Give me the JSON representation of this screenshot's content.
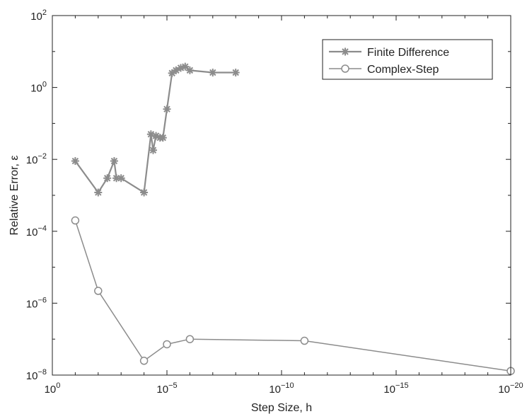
{
  "chart_data": {
    "type": "line",
    "xlabel": "Step Size, h",
    "ylabel": "Relative Error, ε",
    "x_scale": "log",
    "y_scale": "log",
    "x_axis_direction": "decreasing",
    "xlim": [
      1,
      1e-20
    ],
    "ylim": [
      1e-08,
      100
    ],
    "x_ticks": [
      {
        "base": "10",
        "exp": "0"
      },
      {
        "base": "10",
        "exp": "−5"
      },
      {
        "base": "10",
        "exp": "−10"
      },
      {
        "base": "10",
        "exp": "−15"
      },
      {
        "base": "10",
        "exp": "−20"
      }
    ],
    "y_ticks": [
      {
        "base": "10",
        "exp": "−8"
      },
      {
        "base": "10",
        "exp": "−6"
      },
      {
        "base": "10",
        "exp": "−4"
      },
      {
        "base": "10",
        "exp": "−2"
      },
      {
        "base": "10",
        "exp": "0"
      },
      {
        "base": "10",
        "exp": "2"
      }
    ],
    "grid": false,
    "legend_position": "top-right",
    "series": [
      {
        "name": "Finite Difference",
        "marker": "asterisk",
        "color": "#8c8c8c",
        "points": [
          [
            0.1,
            0.009
          ],
          [
            0.01,
            0.0012
          ],
          [
            0.004,
            0.003
          ],
          [
            0.002,
            0.009
          ],
          [
            0.0016,
            0.003
          ],
          [
            0.001,
            0.003
          ],
          [
            0.0001,
            0.0012
          ],
          [
            5e-05,
            0.05
          ],
          [
            4e-05,
            0.018
          ],
          [
            3e-05,
            0.045
          ],
          [
            2e-05,
            0.04
          ],
          [
            1.5e-05,
            0.04
          ],
          [
            1e-05,
            0.25
          ],
          [
            6e-06,
            2.5
          ],
          [
            4e-06,
            3.0
          ],
          [
            2.5e-06,
            3.5
          ],
          [
            1.6e-06,
            3.8
          ],
          [
            1e-06,
            3.0
          ],
          [
            1e-07,
            2.6
          ],
          [
            1e-08,
            2.6
          ]
        ]
      },
      {
        "name": "Complex-Step",
        "marker": "circle",
        "color": "#8c8c8c",
        "points": [
          [
            0.1,
            0.0002
          ],
          [
            0.01,
            2.2e-06
          ],
          [
            0.0001,
            2.5e-08
          ],
          [
            1e-05,
            7.2e-08
          ],
          [
            1e-06,
            1e-07
          ],
          [
            1e-11,
            9e-08
          ],
          [
            1e-20,
            1.3e-08
          ]
        ]
      }
    ]
  }
}
